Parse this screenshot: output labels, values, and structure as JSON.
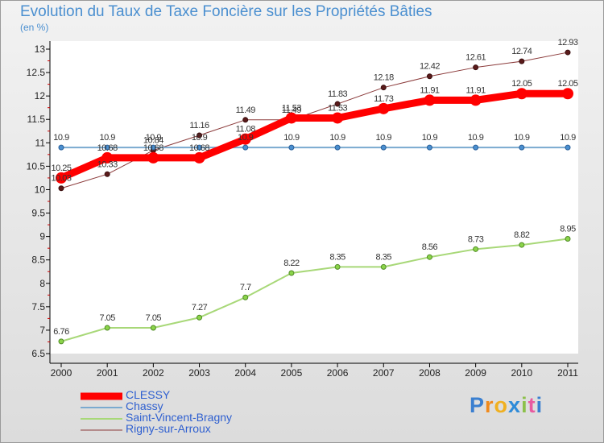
{
  "header": {
    "title": "Evolution du Taux de Taxe Foncière sur les Propriétés Bâties",
    "subtitle": "(en %)"
  },
  "brand": {
    "letters": [
      "P",
      "r",
      "o",
      "x",
      "i",
      "t",
      "i"
    ],
    "colors": [
      "#3a7fd0",
      "#f08a1c",
      "#f0b020",
      "#2e8bd8",
      "#8cc04a",
      "#e85aa0",
      "#3a7fd0"
    ]
  },
  "chart_data": {
    "type": "line",
    "title": "Evolution du Taux de Taxe Foncière sur les Propriétés Bâties",
    "ylabel": "(en %)",
    "xlabel": "",
    "ylim": [
      6.5,
      13
    ],
    "yticks": [
      "6.5",
      "7",
      "7.5",
      "8",
      "8.5",
      "9",
      "9.5",
      "10",
      "10.5",
      "11",
      "11.5",
      "12",
      "12.5",
      "13"
    ],
    "grid": false,
    "categories": [
      "2000",
      "2001",
      "2002",
      "2003",
      "2004",
      "2005",
      "2006",
      "2007",
      "2008",
      "2009",
      "2010",
      "2011"
    ],
    "series": [
      {
        "name": "CLESSY",
        "color": "#ff0000",
        "values": [
          10.25,
          10.68,
          10.68,
          10.68,
          11.08,
          11.53,
          11.53,
          11.73,
          11.91,
          11.91,
          12.05,
          12.05
        ],
        "labels": [
          "10.25",
          "10.68",
          "10.68",
          "10.68",
          "11.08",
          "11.53",
          "11.53",
          "11.73",
          "11.91",
          "11.91",
          "12.05",
          "12.05"
        ]
      },
      {
        "name": "Chassy",
        "color": "#7aaad0",
        "values": [
          10.9,
          10.9,
          10.9,
          10.9,
          10.9,
          10.9,
          10.9,
          10.9,
          10.9,
          10.9,
          10.9,
          10.9
        ],
        "labels": [
          "10.9",
          "10.9",
          "10.9",
          "10.9",
          "10.9",
          "10.9",
          "10.9",
          "10.9",
          "10.9",
          "10.9",
          "10.9",
          "10.9"
        ]
      },
      {
        "name": "Saint-Vincent-Bragny",
        "color": "#a8d878",
        "values": [
          6.76,
          7.05,
          7.05,
          7.27,
          7.7,
          8.22,
          8.35,
          8.35,
          8.56,
          8.73,
          8.82,
          8.95
        ],
        "labels": [
          "6.76",
          "7.05",
          "7.05",
          "7.27",
          "7.7",
          "8.22",
          "8.35",
          "8.35",
          "8.56",
          "8.73",
          "8.82",
          "8.95"
        ]
      },
      {
        "name": "Rigny-sur-Arroux",
        "color": "#8b3a3a",
        "values": [
          10.03,
          10.33,
          10.84,
          11.16,
          11.49,
          11.49,
          11.83,
          12.18,
          12.42,
          12.61,
          12.74,
          12.93
        ],
        "labels": [
          "10.03",
          "10.33",
          "10.84",
          "11.16",
          "11.49",
          "11.49",
          "11.83",
          "12.18",
          "12.42",
          "12.61",
          "12.74",
          "12.93"
        ]
      }
    ]
  }
}
